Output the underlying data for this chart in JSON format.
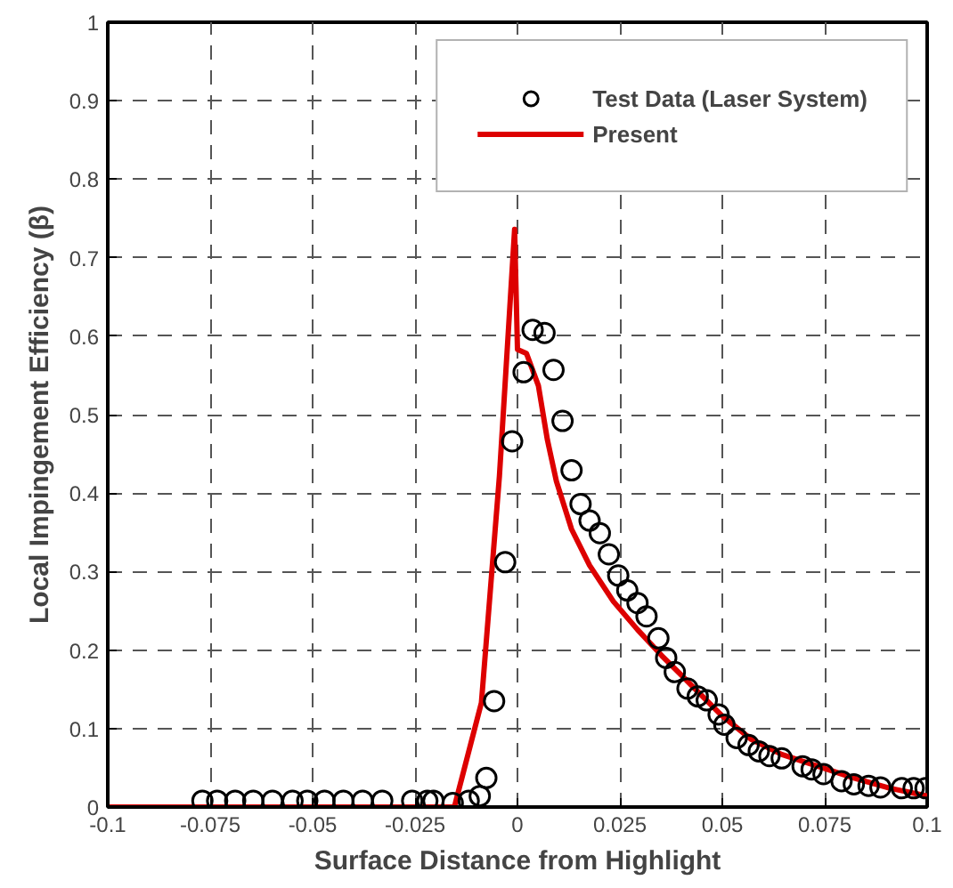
{
  "chart_data": {
    "type": "scatter",
    "xlabel": "Surface Distance from Highlight",
    "ylabel": "Local Impingement Efficiency (β)",
    "xlim": [
      -0.1,
      0.1
    ],
    "ylim": [
      0,
      1
    ],
    "xticks": [
      -0.1,
      -0.075,
      -0.05,
      -0.025,
      0,
      0.025,
      0.05,
      0.075,
      0.1
    ],
    "yticks": [
      0,
      0.1,
      0.2,
      0.3,
      0.4,
      0.5,
      0.6,
      0.7,
      0.8,
      0.9,
      1
    ],
    "grid": true,
    "legend": "top right",
    "series": [
      {
        "name": "Test Data (Laser System)",
        "marker": "circle",
        "color": "#000000",
        "x": [
          -0.0769,
          -0.0733,
          -0.0689,
          -0.0645,
          -0.0598,
          -0.0549,
          -0.0513,
          -0.0471,
          -0.0425,
          -0.0378,
          -0.033,
          -0.0257,
          -0.022,
          -0.0205,
          -0.0158,
          -0.0119,
          -0.0092,
          -0.0076,
          -0.0057,
          -0.003,
          -0.0013,
          0.0015,
          0.0037,
          0.0066,
          0.0088,
          0.011,
          0.0132,
          0.0154,
          0.0176,
          0.0201,
          0.0223,
          0.0246,
          0.0268,
          0.0293,
          0.0315,
          0.0344,
          0.0363,
          0.0384,
          0.0415,
          0.044,
          0.0462,
          0.0491,
          0.0505,
          0.0535,
          0.0564,
          0.0589,
          0.0615,
          0.0645,
          0.0696,
          0.0718,
          0.0747,
          0.0791,
          0.0821,
          0.0857,
          0.0886,
          0.0938,
          0.0967,
          0.0996
        ],
        "values": [
          0.008,
          0.008,
          0.008,
          0.008,
          0.008,
          0.008,
          0.008,
          0.008,
          0.008,
          0.008,
          0.008,
          0.008,
          0.008,
          0.008,
          0.005,
          0.008,
          0.014,
          0.037,
          0.135,
          0.312,
          0.466,
          0.554,
          0.608,
          0.604,
          0.557,
          0.492,
          0.429,
          0.386,
          0.365,
          0.349,
          0.322,
          0.295,
          0.276,
          0.26,
          0.243,
          0.215,
          0.19,
          0.172,
          0.151,
          0.141,
          0.136,
          0.118,
          0.105,
          0.088,
          0.079,
          0.071,
          0.065,
          0.062,
          0.052,
          0.048,
          0.042,
          0.033,
          0.029,
          0.027,
          0.025,
          0.024,
          0.024,
          0.024
        ]
      },
      {
        "name": "Present",
        "type": "line",
        "color": "#dd0000",
        "line_style": "solid",
        "x": [
          -0.1,
          -0.0154,
          -0.0088,
          -0.0044,
          -0.0007,
          0.0,
          0.0022,
          0.0051,
          0.0073,
          0.0095,
          0.0132,
          0.0176,
          0.0234,
          0.0293,
          0.0352,
          0.0425,
          0.0498,
          0.0571,
          0.0645,
          0.0733,
          0.0821,
          0.0909,
          0.1
        ],
        "values": [
          0,
          0,
          0.133,
          0.422,
          0.736,
          0.583,
          0.578,
          0.537,
          0.468,
          0.415,
          0.354,
          0.308,
          0.262,
          0.226,
          0.193,
          0.155,
          0.117,
          0.086,
          0.067,
          0.052,
          0.037,
          0.024,
          0.014
        ]
      }
    ]
  }
}
